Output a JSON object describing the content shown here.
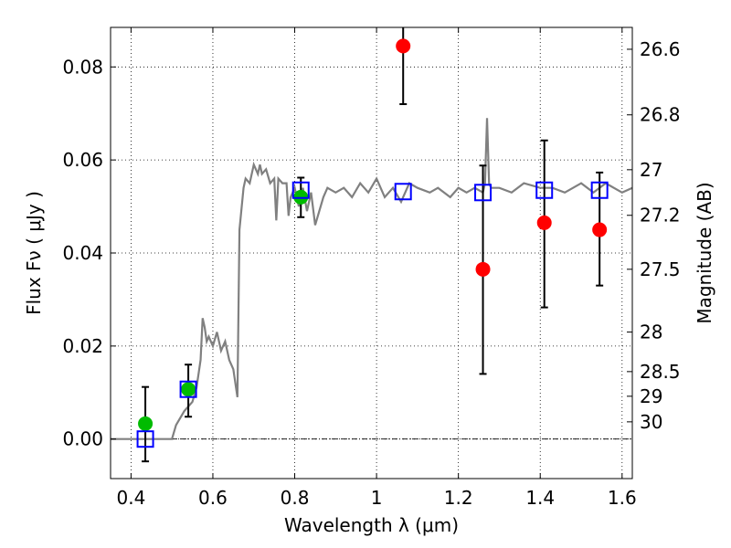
{
  "chart_data": {
    "type": "scatter",
    "xlabel": "Wavelength  λ (μm)",
    "ylabel": "Flux  Fν  ( μJy )",
    "ylabel_right": "Magnitude (AB)",
    "xlim": [
      0.35,
      1.625
    ],
    "ylim": [
      -0.0085,
      0.0885
    ],
    "x_ticks": [
      0.4,
      0.6,
      0.8,
      1.0,
      1.2,
      1.4,
      1.6
    ],
    "x_tick_labels": [
      "0.4",
      "0.6",
      "0.8",
      "1",
      "1.2",
      "1.4",
      "1.6"
    ],
    "y_ticks": [
      0.0,
      0.02,
      0.04,
      0.06,
      0.08
    ],
    "y_tick_labels": [
      "0.00",
      "0.02",
      "0.04",
      "0.06",
      "0.08"
    ],
    "right_ticks": [
      {
        "label": "26.6",
        "flux": 0.0838
      },
      {
        "label": "26.8",
        "flux": 0.0697
      },
      {
        "label": "27",
        "flux": 0.0579
      },
      {
        "label": "27.2",
        "flux": 0.0481
      },
      {
        "label": "27.5",
        "flux": 0.0365
      },
      {
        "label": "28",
        "flux": 0.023
      },
      {
        "label": "28.5",
        "flux": 0.0145
      },
      {
        "label": "29",
        "flux": 0.0092
      },
      {
        "label": "30",
        "flux": 0.0037
      }
    ],
    "grid": true,
    "colors": {
      "model": "#808080",
      "green": "#00bb00",
      "red": "#ff0000",
      "box": "#0000ff",
      "errorbar": "#000000",
      "zero_line": "#000000",
      "grid": "#000000"
    },
    "series": [
      {
        "kind": "line",
        "x": [
          0.35,
          0.49,
          0.5,
          0.51,
          0.53,
          0.55,
          0.56,
          0.57,
          0.575,
          0.58,
          0.585,
          0.59,
          0.6,
          0.61,
          0.62,
          0.63,
          0.64,
          0.65,
          0.66,
          0.665,
          0.675,
          0.68,
          0.69,
          0.7,
          0.71,
          0.715,
          0.72,
          0.73,
          0.74,
          0.75,
          0.755,
          0.76,
          0.77,
          0.78,
          0.785,
          0.79,
          0.8,
          0.81,
          0.82,
          0.83,
          0.84,
          0.85,
          0.87,
          0.88,
          0.9,
          0.92,
          0.94,
          0.96,
          0.98,
          1.0,
          1.02,
          1.04,
          1.06,
          1.08,
          1.1,
          1.13,
          1.15,
          1.18,
          1.2,
          1.22,
          1.24,
          1.26,
          1.265,
          1.27,
          1.275,
          1.28,
          1.3,
          1.33,
          1.36,
          1.4,
          1.43,
          1.46,
          1.5,
          1.53,
          1.56,
          1.6,
          1.625
        ],
        "y": [
          0.0,
          0.0,
          0.0,
          0.003,
          0.006,
          0.008,
          0.011,
          0.017,
          0.026,
          0.024,
          0.021,
          0.022,
          0.02,
          0.023,
          0.019,
          0.021,
          0.017,
          0.015,
          0.009,
          0.045,
          0.054,
          0.056,
          0.055,
          0.059,
          0.057,
          0.059,
          0.057,
          0.058,
          0.055,
          0.056,
          0.047,
          0.056,
          0.055,
          0.055,
          0.048,
          0.052,
          0.054,
          0.05,
          0.054,
          0.049,
          0.053,
          0.046,
          0.052,
          0.054,
          0.053,
          0.054,
          0.052,
          0.055,
          0.053,
          0.056,
          0.052,
          0.054,
          0.051,
          0.055,
          0.054,
          0.053,
          0.054,
          0.052,
          0.054,
          0.053,
          0.054,
          0.053,
          0.055,
          0.069,
          0.055,
          0.054,
          0.054,
          0.053,
          0.055,
          0.054,
          0.054,
          0.053,
          0.055,
          0.053,
          0.055,
          0.053,
          0.054
        ]
      },
      {
        "kind": "points",
        "color": "green",
        "x": [
          0.435,
          0.54,
          0.815
        ],
        "y": [
          0.0033,
          0.0107,
          0.052
        ],
        "err_low": [
          0.0,
          0.0,
          0.0
        ],
        "err_high": [
          0.0,
          0.0,
          0.0
        ]
      },
      {
        "kind": "points",
        "color": "red",
        "x": [
          1.065,
          1.26,
          1.41,
          1.545
        ],
        "y": [
          0.0845,
          0.0365,
          0.0465,
          0.045
        ],
        "err_low": [
          0.0,
          0.0,
          0.0,
          0.0
        ],
        "err_high": [
          0.0,
          0.0,
          0.0,
          0.0
        ]
      },
      {
        "kind": "errorbars",
        "x": [
          0.435,
          0.54,
          0.815,
          1.065,
          1.26,
          1.41,
          1.545
        ],
        "y_low": [
          -0.0048,
          0.0048,
          0.0477,
          0.072,
          0.014,
          0.0283,
          0.033
        ],
        "y_high": [
          0.0112,
          0.016,
          0.0562,
          0.0885,
          0.0588,
          0.0642,
          0.0573
        ]
      },
      {
        "kind": "boxes",
        "x": [
          0.435,
          0.54,
          0.815,
          1.065,
          1.26,
          1.41,
          1.545
        ],
        "y": [
          0.0,
          0.0107,
          0.0535,
          0.0532,
          0.053,
          0.0535,
          0.0535
        ]
      }
    ]
  }
}
